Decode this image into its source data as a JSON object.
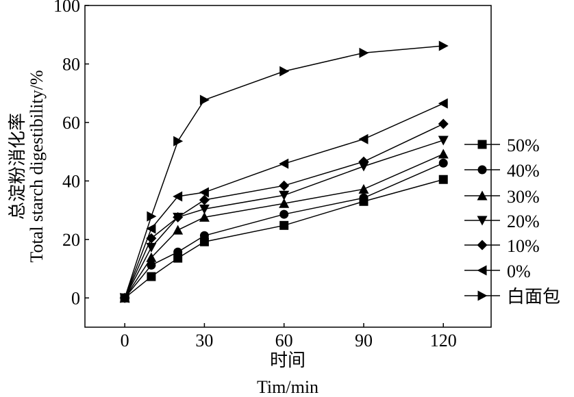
{
  "chart_data": {
    "type": "line",
    "xlabel_cn": "时间",
    "xlabel": "Tim/min",
    "ylabel_cn": "总淀粉消化率",
    "ylabel": "Total starch digestibility/%",
    "xlim": [
      -15,
      138
    ],
    "ylim": [
      -10,
      100
    ],
    "xticks": [
      0,
      30,
      60,
      90,
      120
    ],
    "yticks": [
      0,
      20,
      40,
      60,
      80,
      100
    ],
    "grid": false,
    "legend_position": "right",
    "x": [
      0,
      10,
      20,
      30,
      60,
      90,
      120
    ],
    "series": [
      {
        "name": "50%",
        "marker": "square",
        "values": [
          0,
          7.3,
          13.6,
          19.2,
          24.8,
          33.0,
          40.5
        ]
      },
      {
        "name": "40%",
        "marker": "circle",
        "values": [
          0,
          11.2,
          15.7,
          21.3,
          28.6,
          34.2,
          46.1
        ]
      },
      {
        "name": "30%",
        "marker": "triangle-up",
        "values": [
          0,
          13.8,
          23.2,
          27.6,
          32.3,
          37.2,
          49.2
        ]
      },
      {
        "name": "20%",
        "marker": "triangle-down",
        "values": [
          0,
          17.3,
          27.6,
          30.4,
          35.1,
          45.0,
          53.9
        ]
      },
      {
        "name": "10%",
        "marker": "diamond",
        "values": [
          0,
          20.4,
          27.6,
          33.5,
          38.4,
          46.6,
          59.5
        ]
      },
      {
        "name": "0%",
        "marker": "triangle-left",
        "values": [
          0,
          23.7,
          34.7,
          36.1,
          45.9,
          54.3,
          66.5
        ]
      },
      {
        "name": "白面包",
        "marker": "triangle-right",
        "values": [
          0,
          27.9,
          53.6,
          67.7,
          77.5,
          83.8,
          86.2
        ]
      }
    ]
  }
}
